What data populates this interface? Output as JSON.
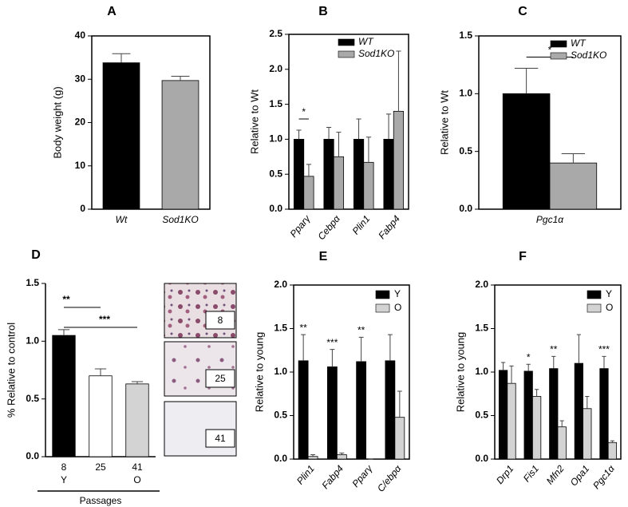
{
  "chart_data": [
    {
      "type": "bar",
      "panel": "A",
      "ylabel": "Body weight (g)",
      "categories": [
        "Wt",
        "Sod1KO"
      ],
      "series": [
        {
          "values": [
            33.8,
            29.7
          ],
          "errors": [
            2.1,
            1.0
          ],
          "colors": [
            "#000000",
            "#a9a9a9"
          ]
        }
      ],
      "ylim": [
        0,
        40
      ],
      "yticks": [
        0,
        10,
        20,
        30,
        40
      ]
    },
    {
      "type": "bar",
      "panel": "B",
      "ylabel": "Relative to Wt",
      "categories": [
        "Pparγ",
        "Cebpα",
        "Plin1",
        "Fabp4"
      ],
      "series": [
        {
          "name": "WT",
          "color": "#000000",
          "values": [
            1.0,
            1.0,
            1.0,
            1.0
          ],
          "errors": [
            0.13,
            0.17,
            0.29,
            0.36
          ]
        },
        {
          "name": "Sod1KO",
          "color": "#a9a9a9",
          "values": [
            0.47,
            0.75,
            0.67,
            1.4
          ],
          "errors": [
            0.17,
            0.35,
            0.36,
            0.86
          ]
        }
      ],
      "ylim": [
        0,
        2.5
      ],
      "yticks": [
        {
          "value": 0,
          "label": "0.0"
        },
        0.5,
        {
          "value": 1,
          "label": "1.0"
        },
        1.5,
        {
          "value": 2,
          "label": "2.0"
        },
        2.5
      ],
      "annotations": [
        "*"
      ]
    },
    {
      "type": "bar",
      "panel": "C",
      "ylabel": "Relative to Wt",
      "categories": [
        "Pgc1α"
      ],
      "series": [
        {
          "name": "WT",
          "color": "#000000",
          "values": [
            1.0
          ],
          "errors": [
            0.22
          ]
        },
        {
          "name": "Sod1KO",
          "color": "#a9a9a9",
          "values": [
            0.4
          ],
          "errors": [
            0.08
          ]
        }
      ],
      "ylim": [
        0,
        1.5
      ],
      "yticks": [
        {
          "value": 0,
          "label": "0.0"
        },
        0.5,
        {
          "value": 1,
          "label": "1.0"
        },
        1.5
      ],
      "annotations": [
        "*"
      ]
    },
    {
      "type": "bar",
      "panel": "D",
      "ylabel": "% Relative to control",
      "categories": [
        "8",
        "25",
        "41"
      ],
      "sublabels": [
        "Y",
        null,
        "O"
      ],
      "xlabel": "Passages",
      "series": [
        {
          "values": [
            1.05,
            0.7,
            0.63
          ],
          "errors": [
            0.05,
            0.06,
            0.02
          ],
          "colors": [
            "#000000",
            "#ffffff",
            "#d3d3d3"
          ]
        }
      ],
      "ylim": [
        0,
        1.5
      ],
      "yticks": [
        {
          "value": 0,
          "label": "0.0"
        },
        0.5,
        {
          "value": 1,
          "label": "1.0"
        },
        1.5
      ],
      "annotations": [
        "**",
        "***"
      ],
      "image_labels": [
        "8",
        "25",
        "41"
      ]
    },
    {
      "type": "bar",
      "panel": "E",
      "ylabel": "Relative to young",
      "categories": [
        "Plin1",
        "Fabp4",
        "Pparγ",
        "C/ebpα"
      ],
      "series": [
        {
          "name": "Y",
          "color": "#000000",
          "values": [
            1.13,
            1.06,
            1.12,
            1.13
          ],
          "errors": [
            0.3,
            0.2,
            0.28,
            0.3
          ]
        },
        {
          "name": "O",
          "color": "#d3d3d3",
          "values": [
            0.03,
            0.05,
            0.0,
            0.48
          ],
          "errors": [
            0.02,
            0.02,
            0.0,
            0.3
          ]
        }
      ],
      "ylim": [
        0,
        2.0
      ],
      "yticks": [
        {
          "value": 0,
          "label": "0.0"
        },
        0.5,
        {
          "value": 1,
          "label": "1.0"
        },
        1.5,
        {
          "value": 2,
          "label": "2.0"
        }
      ],
      "annotations": [
        "**",
        "***",
        "**",
        null
      ]
    },
    {
      "type": "bar",
      "panel": "F",
      "ylabel": "Relative to young",
      "categories": [
        "Drp1",
        "Fis1",
        "Mfn2",
        "Opa1",
        "Pgc1α"
      ],
      "series": [
        {
          "name": "Y",
          "color": "#000000",
          "values": [
            1.02,
            1.01,
            1.04,
            1.1,
            1.04
          ],
          "errors": [
            0.09,
            0.08,
            0.14,
            0.33,
            0.14
          ]
        },
        {
          "name": "O",
          "color": "#d3d3d3",
          "values": [
            0.87,
            0.72,
            0.37,
            0.58,
            0.19
          ],
          "errors": [
            0.2,
            0.08,
            0.07,
            0.14,
            0.02
          ]
        }
      ],
      "ylim": [
        0,
        2.0
      ],
      "yticks": [
        {
          "value": 0,
          "label": "0.0"
        },
        0.5,
        {
          "value": 1,
          "label": "1.0"
        },
        1.5,
        {
          "value": 2,
          "label": "2.0"
        }
      ],
      "annotations": [
        null,
        "*",
        "**",
        null,
        "***"
      ]
    }
  ]
}
